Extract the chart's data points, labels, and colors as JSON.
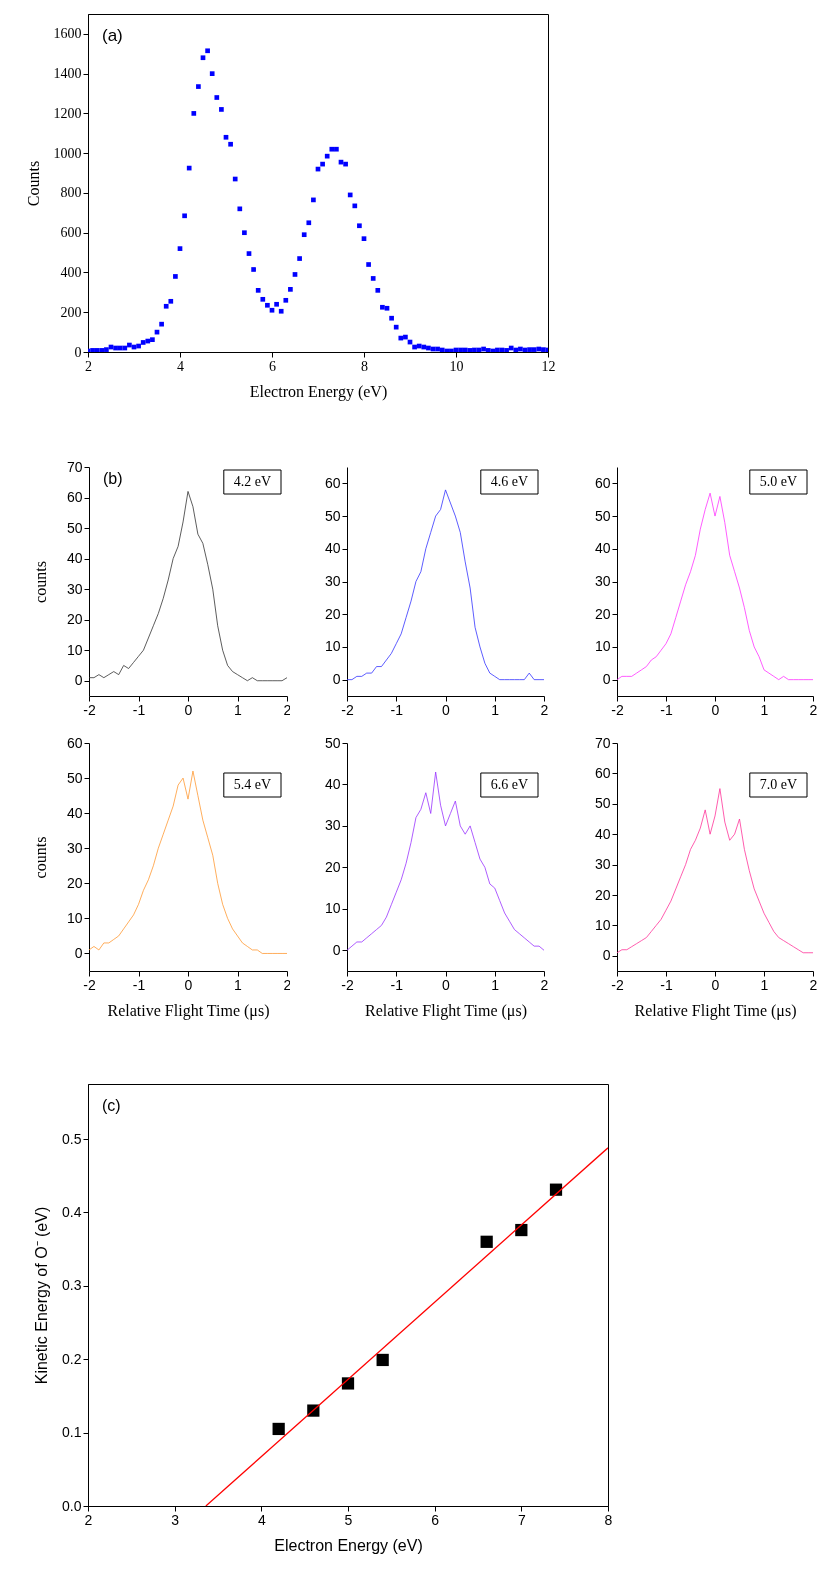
{
  "chart_data": [
    {
      "type": "scatter",
      "title": "(a)",
      "xlabel": "Electron Energy (eV)",
      "ylabel": "Counts",
      "marker": "square",
      "color": "#0000ff",
      "xlim": [
        2,
        12
      ],
      "ylim": [
        0,
        1700
      ],
      "xticks": [
        2,
        4,
        6,
        8,
        10,
        12
      ],
      "yticks": [
        0,
        200,
        400,
        600,
        800,
        1000,
        1200,
        1400,
        1600
      ],
      "x": [
        2.0,
        2.1,
        2.2,
        2.3,
        2.4,
        2.5,
        2.6,
        2.7,
        2.8,
        2.9,
        3.0,
        3.1,
        3.2,
        3.3,
        3.4,
        3.5,
        3.6,
        3.7,
        3.8,
        3.9,
        4.0,
        4.1,
        4.2,
        4.3,
        4.4,
        4.5,
        4.6,
        4.7,
        4.8,
        4.9,
        5.0,
        5.1,
        5.2,
        5.3,
        5.4,
        5.5,
        5.6,
        5.7,
        5.8,
        5.9,
        6.0,
        6.1,
        6.2,
        6.3,
        6.4,
        6.5,
        6.6,
        6.7,
        6.8,
        6.9,
        7.0,
        7.1,
        7.2,
        7.3,
        7.4,
        7.5,
        7.6,
        7.7,
        7.8,
        7.9,
        8.0,
        8.1,
        8.2,
        8.3,
        8.4,
        8.5,
        8.6,
        8.7,
        8.8,
        8.9,
        9.0,
        9.1,
        9.2,
        9.3,
        9.4,
        9.5,
        9.6,
        9.7,
        9.8,
        9.9,
        10.0,
        10.1,
        10.2,
        10.3,
        10.4,
        10.5,
        10.6,
        10.7,
        10.8,
        10.9,
        11.0,
        11.1,
        11.2,
        11.3,
        11.4,
        11.5,
        11.6,
        11.7,
        11.8,
        11.9,
        12.0
      ],
      "values": [
        5,
        8,
        8,
        8,
        12,
        25,
        20,
        20,
        20,
        35,
        25,
        30,
        48,
        55,
        62,
        100,
        140,
        230,
        255,
        380,
        520,
        685,
        925,
        1200,
        1335,
        1480,
        1515,
        1400,
        1280,
        1220,
        1080,
        1045,
        870,
        720,
        600,
        495,
        415,
        310,
        265,
        235,
        210,
        240,
        205,
        260,
        315,
        390,
        470,
        590,
        650,
        765,
        920,
        945,
        985,
        1020,
        1020,
        955,
        945,
        790,
        735,
        635,
        570,
        440,
        370,
        310,
        225,
        220,
        170,
        125,
        70,
        75,
        50,
        25,
        30,
        25,
        20,
        15,
        15,
        10,
        5,
        5,
        10,
        10,
        10,
        8,
        10,
        10,
        15,
        8,
        5,
        10,
        10,
        8,
        20,
        10,
        15,
        10,
        12,
        12,
        15,
        12,
        10
      ]
    },
    {
      "type": "line",
      "title": "(b)",
      "ylabel": "counts",
      "annotations": [
        "4.2 eV"
      ],
      "color": "#333333",
      "xlim": [
        -2,
        2
      ],
      "ylim": [
        -5,
        70
      ],
      "xticks": [
        -2,
        -1,
        0,
        1,
        2
      ],
      "yticks": [
        0,
        10,
        20,
        30,
        40,
        50,
        60,
        70
      ],
      "x": [
        -2.0,
        -1.9,
        -1.8,
        -1.7,
        -1.6,
        -1.5,
        -1.4,
        -1.3,
        -1.2,
        -1.1,
        -1.0,
        -0.9,
        -0.8,
        -0.7,
        -0.6,
        -0.5,
        -0.4,
        -0.3,
        -0.2,
        -0.1,
        0.0,
        0.1,
        0.2,
        0.3,
        0.4,
        0.5,
        0.6,
        0.7,
        0.8,
        0.9,
        1.0,
        1.1,
        1.2,
        1.3,
        1.4,
        1.5,
        1.6,
        1.7,
        1.8,
        1.9,
        2.0
      ],
      "values": [
        1,
        1,
        2,
        1,
        2,
        3,
        2,
        5,
        4,
        6,
        8,
        10,
        14,
        18,
        22,
        27,
        33,
        40,
        44,
        52,
        62,
        57,
        48,
        45,
        38,
        30,
        18,
        10,
        5,
        3,
        2,
        1,
        0,
        1,
        0,
        0,
        0,
        0,
        0,
        0,
        1
      ]
    },
    {
      "type": "line",
      "annotations": [
        "4.6 eV"
      ],
      "color": "#3333ff",
      "xlim": [
        -2,
        2
      ],
      "ylim": [
        -5,
        65
      ],
      "xticks": [
        -2,
        -1,
        0,
        1,
        2
      ],
      "yticks": [
        0,
        10,
        20,
        30,
        40,
        50,
        60
      ],
      "x": [
        -2.0,
        -1.9,
        -1.8,
        -1.7,
        -1.6,
        -1.5,
        -1.4,
        -1.3,
        -1.2,
        -1.1,
        -1.0,
        -0.9,
        -0.8,
        -0.7,
        -0.6,
        -0.5,
        -0.4,
        -0.3,
        -0.2,
        -0.1,
        0.0,
        0.1,
        0.2,
        0.3,
        0.4,
        0.5,
        0.6,
        0.7,
        0.8,
        0.9,
        1.0,
        1.1,
        1.2,
        1.3,
        1.4,
        1.5,
        1.6,
        1.7,
        1.8,
        1.9,
        2.0
      ],
      "values": [
        0,
        0,
        1,
        1,
        2,
        2,
        4,
        4,
        6,
        8,
        11,
        14,
        19,
        24,
        30,
        33,
        40,
        45,
        50,
        52,
        58,
        54,
        50,
        45,
        36,
        28,
        16,
        10,
        5,
        2,
        1,
        0,
        0,
        0,
        0,
        0,
        0,
        2,
        0,
        0,
        0
      ]
    },
    {
      "type": "line",
      "annotations": [
        "5.0 eV"
      ],
      "color": "#ff33ff",
      "xlim": [
        -2,
        2
      ],
      "ylim": [
        -5,
        65
      ],
      "xticks": [
        -2,
        -1,
        0,
        1,
        2
      ],
      "yticks": [
        0,
        10,
        20,
        30,
        40,
        50,
        60
      ],
      "x": [
        -2.0,
        -1.9,
        -1.8,
        -1.7,
        -1.6,
        -1.5,
        -1.4,
        -1.3,
        -1.2,
        -1.1,
        -1.0,
        -0.9,
        -0.8,
        -0.7,
        -0.6,
        -0.5,
        -0.4,
        -0.3,
        -0.2,
        -0.1,
        0.0,
        0.1,
        0.2,
        0.3,
        0.4,
        0.5,
        0.6,
        0.7,
        0.8,
        0.9,
        1.0,
        1.1,
        1.2,
        1.3,
        1.4,
        1.5,
        1.6,
        1.7,
        1.8,
        1.9,
        2.0
      ],
      "values": [
        0,
        1,
        1,
        1,
        2,
        3,
        4,
        6,
        7,
        9,
        11,
        14,
        19,
        24,
        29,
        33,
        38,
        46,
        52,
        57,
        50,
        56,
        48,
        38,
        33,
        28,
        22,
        15,
        10,
        7,
        3,
        2,
        1,
        0,
        1,
        0,
        0,
        0,
        0,
        0,
        0
      ]
    },
    {
      "type": "line",
      "ylabel": "counts",
      "xlabel": "Relative Flight Time (μs)",
      "annotations": [
        "5.4 eV"
      ],
      "color": "#ff9933",
      "xlim": [
        -2,
        2
      ],
      "ylim": [
        -5,
        60
      ],
      "xticks": [
        -2,
        -1,
        0,
        1,
        2
      ],
      "yticks": [
        0,
        10,
        20,
        30,
        40,
        50,
        60
      ],
      "x": [
        -2.0,
        -1.9,
        -1.8,
        -1.7,
        -1.6,
        -1.5,
        -1.4,
        -1.3,
        -1.2,
        -1.1,
        -1.0,
        -0.9,
        -0.8,
        -0.7,
        -0.6,
        -0.5,
        -0.4,
        -0.3,
        -0.2,
        -0.1,
        0.0,
        0.1,
        0.2,
        0.3,
        0.4,
        0.5,
        0.6,
        0.7,
        0.8,
        0.9,
        1.0,
        1.1,
        1.2,
        1.3,
        1.4,
        1.5,
        1.6,
        1.7,
        1.8,
        1.9,
        2.0
      ],
      "values": [
        1,
        2,
        1,
        3,
        3,
        4,
        5,
        7,
        9,
        11,
        14,
        18,
        21,
        25,
        30,
        34,
        38,
        42,
        48,
        50,
        44,
        52,
        45,
        38,
        33,
        28,
        20,
        14,
        10,
        7,
        5,
        3,
        2,
        1,
        1,
        0,
        0,
        0,
        0,
        0,
        0
      ]
    },
    {
      "type": "line",
      "xlabel": "Relative Flight Time (μs)",
      "annotations": [
        "6.6 eV"
      ],
      "color": "#9933ff",
      "xlim": [
        -2,
        2
      ],
      "ylim": [
        -5,
        50
      ],
      "xticks": [
        -2,
        -1,
        0,
        1,
        2
      ],
      "yticks": [
        0,
        10,
        20,
        30,
        40,
        50
      ],
      "x": [
        -2.0,
        -1.9,
        -1.8,
        -1.7,
        -1.6,
        -1.5,
        -1.4,
        -1.3,
        -1.2,
        -1.1,
        -1.0,
        -0.9,
        -0.8,
        -0.7,
        -0.6,
        -0.5,
        -0.4,
        -0.3,
        -0.2,
        -0.1,
        0.0,
        0.1,
        0.2,
        0.3,
        0.4,
        0.5,
        0.6,
        0.7,
        0.8,
        0.9,
        1.0,
        1.1,
        1.2,
        1.3,
        1.4,
        1.5,
        1.6,
        1.7,
        1.8,
        1.9,
        2.0
      ],
      "values": [
        0,
        1,
        2,
        2,
        3,
        4,
        5,
        6,
        8,
        11,
        14,
        17,
        21,
        26,
        32,
        34,
        38,
        33,
        43,
        35,
        30,
        33,
        36,
        30,
        28,
        30,
        26,
        22,
        20,
        16,
        15,
        12,
        9,
        7,
        5,
        4,
        3,
        2,
        1,
        1,
        0
      ]
    },
    {
      "type": "line",
      "xlabel": "Relative Flight Time (μs)",
      "annotations": [
        "7.0 eV"
      ],
      "color": "#ff3399",
      "xlim": [
        -2,
        2
      ],
      "ylim": [
        -5,
        70
      ],
      "xticks": [
        -2,
        -1,
        0,
        1,
        2
      ],
      "yticks": [
        0,
        10,
        20,
        30,
        40,
        50,
        60,
        70
      ],
      "x": [
        -2.0,
        -1.9,
        -1.8,
        -1.7,
        -1.6,
        -1.5,
        -1.4,
        -1.3,
        -1.2,
        -1.1,
        -1.0,
        -0.9,
        -0.8,
        -0.7,
        -0.6,
        -0.5,
        -0.4,
        -0.3,
        -0.2,
        -0.1,
        0.0,
        0.1,
        0.2,
        0.3,
        0.4,
        0.5,
        0.6,
        0.7,
        0.8,
        0.9,
        1.0,
        1.1,
        1.2,
        1.3,
        1.4,
        1.5,
        1.6,
        1.7,
        1.8,
        1.9,
        2.0
      ],
      "values": [
        1,
        2,
        2,
        3,
        4,
        5,
        6,
        8,
        10,
        12,
        15,
        18,
        22,
        26,
        30,
        35,
        38,
        42,
        48,
        40,
        46,
        55,
        44,
        38,
        40,
        45,
        35,
        28,
        22,
        18,
        14,
        11,
        8,
        6,
        5,
        4,
        3,
        2,
        1,
        1,
        1
      ]
    },
    {
      "type": "scatter",
      "title": "(c)",
      "xlabel": "Electron Energy (eV)",
      "ylabel": "Kinetic Energy of O⁻ (eV)",
      "xlim": [
        2,
        8
      ],
      "ylim": [
        0,
        0.575
      ],
      "xticks": [
        2,
        3,
        4,
        5,
        6,
        7,
        8
      ],
      "yticks": [
        {
          "value": 0,
          "label": "0.0"
        },
        0.1,
        0.2,
        0.3,
        0.4,
        0.5
      ],
      "series": [
        {
          "marker": "square",
          "color": "#000000",
          "x": [
            4.2,
            4.6,
            5.0,
            5.4,
            6.6,
            7.0,
            7.4
          ],
          "values": [
            0.105,
            0.13,
            0.167,
            0.199,
            0.36,
            0.376,
            0.431
          ]
        },
        {
          "type": "line",
          "color": "#ff0000",
          "x": [
            3.36,
            8
          ],
          "values": [
            0,
            0.488
          ]
        }
      ]
    }
  ]
}
